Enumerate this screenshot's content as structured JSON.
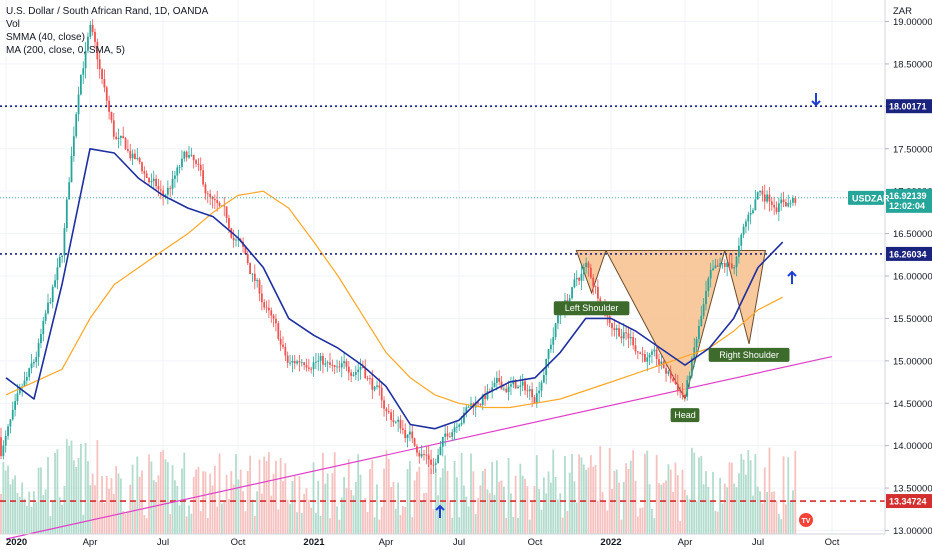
{
  "header": {
    "title": "U.S. Dollar / South African Rand, 1D, OANDA",
    "lines": [
      "Vol",
      "SMMA (40, close)",
      "MA (200, close, 0, SMA, 5)"
    ]
  },
  "colors": {
    "bull": "#26a69a",
    "bear": "#ef5350",
    "smma": "#1e2fa0",
    "ma": "#ffa726",
    "trend": "#e040c8",
    "hline": "#1a237e",
    "support": "#d32f2f",
    "pattern_fill": "#f7c08c",
    "pattern_stroke": "#6d4c2a",
    "label_bg": "#3d6b2c",
    "price_tag": "#26a69a",
    "arrow": "#1e40d0"
  },
  "icons": [
    "arrow-up-icon",
    "arrow-down-icon",
    "tradingview-logo-icon"
  ],
  "chart_data": {
    "type": "line",
    "title": "U.S. Dollar / South African Rand, 1D, OANDA",
    "currency": "ZAR",
    "ylim": [
      13.0,
      19.3
    ],
    "y_ticks": [
      "19.00000",
      "18.50000",
      "18.00000",
      "17.50000",
      "17.00000",
      "16.50000",
      "16.00000",
      "15.50000",
      "15.00000",
      "14.50000",
      "14.00000",
      "13.50000",
      "13.00000"
    ],
    "x_ticks": [
      "2020",
      "Apr",
      "Jul",
      "Oct",
      "2021",
      "Apr",
      "Jul",
      "Oct",
      "2022",
      "Apr",
      "Jul",
      "Oct"
    ],
    "grid": true,
    "series": [
      {
        "name": "USDZAR",
        "type": "candlestick",
        "x": [
          "2020-01",
          "2020-02",
          "2020-03",
          "2020-03-20",
          "2020-04",
          "2020-05",
          "2020-06",
          "2020-07",
          "2020-08",
          "2020-09",
          "2020-10",
          "2020-11",
          "2020-12",
          "2021-01",
          "2021-02",
          "2021-03",
          "2021-04",
          "2021-05",
          "2021-06",
          "2021-07",
          "2021-08",
          "2021-09",
          "2021-10",
          "2021-11",
          "2021-12",
          "2022-01",
          "2022-02",
          "2022-03",
          "2022-04",
          "2022-05",
          "2022-06",
          "2022-07",
          "2022-08"
        ],
        "values": [
          14.1,
          14.9,
          16.2,
          18.4,
          18.9,
          17.6,
          17.3,
          16.9,
          17.4,
          16.8,
          16.4,
          15.7,
          14.9,
          15.1,
          14.8,
          15.0,
          14.4,
          14.1,
          13.8,
          14.4,
          14.6,
          14.7,
          14.6,
          15.6,
          16.1,
          15.5,
          15.2,
          14.9,
          14.6,
          15.9,
          16.1,
          17.0,
          16.9
        ]
      },
      {
        "name": "SMMA (40, close)",
        "x": [
          "2020-01",
          "2020-02",
          "2020-03",
          "2020-04",
          "2020-05",
          "2020-06",
          "2020-07",
          "2020-08",
          "2020-09",
          "2020-10",
          "2020-11",
          "2020-12",
          "2021-01",
          "2021-02",
          "2021-03",
          "2021-04",
          "2021-05",
          "2021-06",
          "2021-07",
          "2021-08",
          "2021-09",
          "2021-10",
          "2021-11",
          "2021-12",
          "2022-01",
          "2022-02",
          "2022-03",
          "2022-04",
          "2022-05",
          "2022-06",
          "2022-07",
          "2022-08"
        ],
        "values": [
          14.8,
          14.55,
          15.9,
          17.5,
          17.45,
          17.15,
          16.95,
          16.8,
          16.7,
          16.45,
          16.1,
          15.5,
          15.3,
          15.15,
          14.95,
          14.7,
          14.25,
          14.2,
          14.3,
          14.6,
          14.75,
          14.8,
          15.1,
          15.5,
          15.5,
          15.35,
          15.15,
          14.95,
          15.15,
          15.5,
          16.1,
          16.4
        ]
      },
      {
        "name": "MA (200, close, 0, SMA, 5)",
        "x": [
          "2020-01",
          "2020-03",
          "2020-04",
          "2020-05",
          "2020-06",
          "2020-07",
          "2020-08",
          "2020-09",
          "2020-10",
          "2020-11",
          "2020-12",
          "2021-01",
          "2021-02",
          "2021-03",
          "2021-04",
          "2021-05",
          "2021-06",
          "2021-07",
          "2021-08",
          "2021-09",
          "2021-10",
          "2021-11",
          "2021-12",
          "2022-01",
          "2022-02",
          "2022-03",
          "2022-04",
          "2022-05",
          "2022-06",
          "2022-07",
          "2022-08"
        ],
        "values": [
          14.6,
          14.9,
          15.5,
          15.9,
          16.1,
          16.3,
          16.5,
          16.75,
          16.95,
          17.0,
          16.8,
          16.4,
          16.0,
          15.55,
          15.1,
          14.8,
          14.6,
          14.5,
          14.45,
          14.45,
          14.5,
          14.55,
          14.65,
          14.75,
          14.85,
          14.95,
          15.05,
          15.15,
          15.35,
          15.6,
          15.75
        ]
      }
    ],
    "horizontal_levels": [
      {
        "name": "resistance",
        "value": 18.00171,
        "style": "dotted"
      },
      {
        "name": "neckline",
        "value": 16.26034,
        "style": "dotted"
      },
      {
        "name": "support",
        "value": 13.34724,
        "style": "dashed"
      }
    ],
    "trendline": {
      "from": {
        "x": "2020-01",
        "y": 12.9
      },
      "to": {
        "x": "2022-10",
        "y": 15.05
      }
    },
    "pattern": {
      "name": "inverse head and shoulders",
      "neckline": 16.3,
      "left_shoulder": 15.8,
      "head": 14.55,
      "right_shoulder": 15.2
    },
    "annotations": [
      {
        "text": "Left Shoulder",
        "x": "2021-12",
        "y": 15.5
      },
      {
        "text": "Head",
        "x": "2022-04",
        "y": 14.4
      },
      {
        "text": "Right Shoulder",
        "x": "2022-06",
        "y": 15.05
      }
    ],
    "price_tags": [
      {
        "text": "18.00171",
        "kind": "level"
      },
      {
        "text": "16.26034",
        "kind": "level"
      },
      {
        "text": "13.34724",
        "kind": "level"
      },
      {
        "text": "16.92139",
        "kind": "last"
      },
      {
        "text": "12:02:04",
        "kind": "countdown"
      },
      {
        "text": "USDZAR",
        "kind": "symbol"
      }
    ]
  }
}
